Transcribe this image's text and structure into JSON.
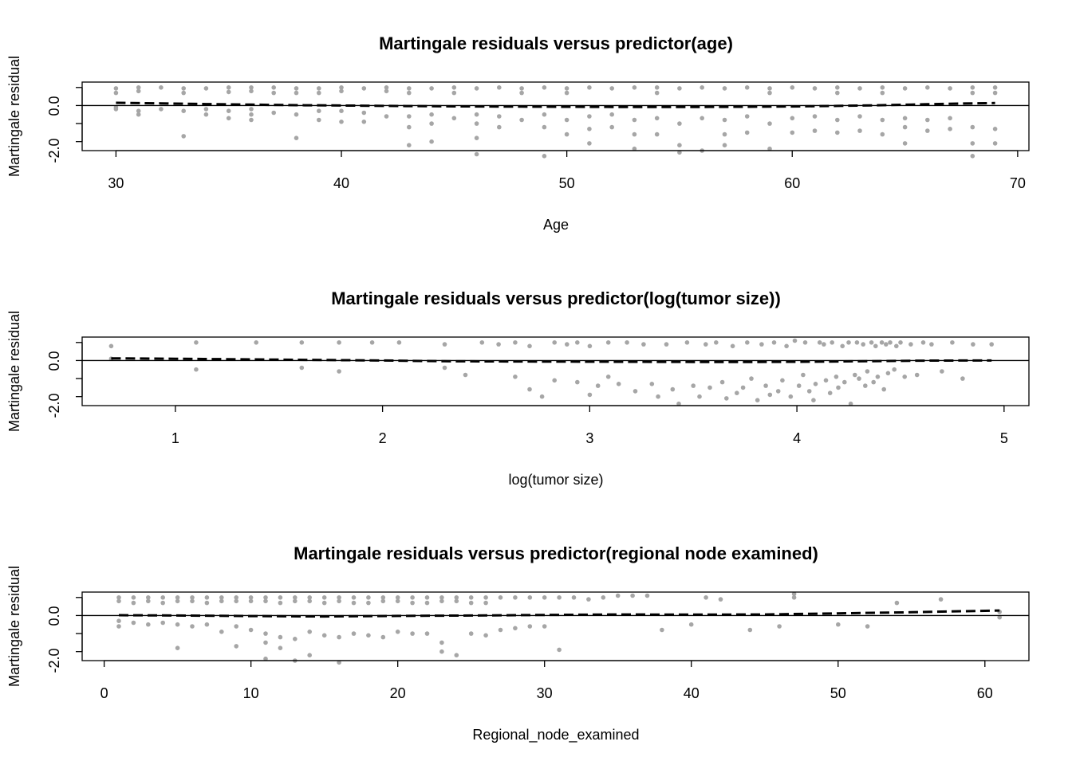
{
  "chart_data": [
    {
      "type": "scatter",
      "title": "Martingale residuals versus predictor(age)",
      "xlabel": "Age",
      "ylabel": "Martingale residual",
      "xlim": [
        28.5,
        70.5
      ],
      "ylim": [
        -2.5,
        1.3
      ],
      "xticks": [
        30,
        40,
        50,
        60,
        70
      ],
      "yticks": [
        1.0,
        0.0,
        -1.0,
        -2.0
      ],
      "ytick_labels": [
        "0.0",
        "-2.0"
      ],
      "grid": false,
      "reference_line": 0,
      "point_color": "#a6a6a6",
      "smooth_color": "#000000",
      "series": [
        {
          "x": [
            30,
            30,
            30,
            30,
            31,
            31,
            31,
            31,
            32,
            32,
            33,
            33,
            33,
            33,
            34,
            34,
            34,
            35,
            35,
            35,
            35,
            36,
            36,
            36,
            36,
            36,
            37,
            37,
            37,
            38,
            38,
            38,
            38,
            39,
            39,
            39,
            39,
            40,
            40,
            40,
            40,
            41,
            41,
            41,
            42,
            42,
            42,
            43,
            43,
            43,
            43,
            43,
            44,
            44,
            44,
            44,
            45,
            45,
            45,
            46,
            46,
            46,
            46,
            46,
            47,
            47,
            47,
            48,
            48,
            48,
            49,
            49,
            49,
            49,
            50,
            50,
            50,
            50,
            51,
            51,
            51,
            51,
            52,
            52,
            52,
            53,
            53,
            53,
            53,
            54,
            54,
            54,
            54,
            55,
            55,
            55,
            55,
            56,
            56,
            56,
            57,
            57,
            57,
            57,
            58,
            58,
            58,
            59,
            59,
            59,
            59,
            60,
            60,
            60,
            61,
            61,
            61,
            62,
            62,
            62,
            62,
            63,
            63,
            63,
            64,
            64,
            64,
            64,
            65,
            65,
            65,
            65,
            66,
            66,
            66,
            67,
            67,
            67,
            68,
            68,
            68,
            68,
            68,
            69,
            69,
            69,
            69
          ],
          "y": [
            0.95,
            0.7,
            -0.1,
            -0.2,
            1.0,
            0.8,
            -0.3,
            -0.5,
            1.0,
            -0.2,
            0.95,
            0.7,
            -0.3,
            -1.7,
            0.95,
            -0.2,
            -0.5,
            1.0,
            0.75,
            -0.3,
            -0.7,
            1.0,
            0.8,
            -0.2,
            -0.5,
            -0.8,
            1.0,
            0.7,
            -0.4,
            0.95,
            0.7,
            -0.5,
            -1.8,
            0.95,
            0.7,
            -0.3,
            -0.8,
            1.0,
            0.8,
            -0.3,
            -0.9,
            0.95,
            -0.4,
            -0.9,
            1.0,
            0.8,
            -0.6,
            0.95,
            0.7,
            -0.6,
            -1.2,
            -2.2,
            0.95,
            -0.5,
            -1.0,
            -2.0,
            1.0,
            0.7,
            -0.7,
            0.95,
            -0.5,
            -1.0,
            -1.8,
            -2.7,
            1.0,
            -0.6,
            -1.2,
            0.95,
            0.7,
            -0.8,
            1.0,
            -0.5,
            -1.2,
            -2.8,
            0.95,
            0.7,
            -0.8,
            -1.6,
            1.0,
            -0.6,
            -1.3,
            -2.1,
            0.95,
            -0.5,
            -1.2,
            1.0,
            -0.8,
            -1.6,
            -2.4,
            1.0,
            0.7,
            -0.7,
            -1.6,
            0.95,
            -1.0,
            -2.2,
            -2.6,
            1.0,
            -0.7,
            -2.5,
            0.95,
            -0.8,
            -1.6,
            -2.2,
            1.0,
            -0.6,
            -1.5,
            0.95,
            0.7,
            -1.0,
            -2.4,
            1.0,
            -0.7,
            -1.5,
            0.95,
            -0.6,
            -1.4,
            1.0,
            0.7,
            -0.8,
            -1.5,
            0.95,
            -0.6,
            -1.4,
            1.0,
            0.7,
            -0.8,
            -1.6,
            0.95,
            -0.7,
            -1.2,
            -2.1,
            1.0,
            -0.8,
            -1.4,
            0.95,
            -0.7,
            -1.3,
            1.0,
            0.7,
            -1.2,
            -2.1,
            -2.8,
            1.0,
            0.7,
            -1.3,
            -2.1
          ]
        },
        {
          "name": "",
          "kind": "smooth",
          "x": [
            30,
            32,
            34,
            36,
            38,
            40,
            42,
            44,
            46,
            48,
            50,
            52,
            54,
            56,
            58,
            60,
            62,
            64,
            66,
            68,
            69
          ],
          "y": [
            0.15,
            0.12,
            0.08,
            0.05,
            0.02,
            0.0,
            -0.02,
            -0.04,
            -0.05,
            -0.06,
            -0.07,
            -0.08,
            -0.08,
            -0.08,
            -0.07,
            -0.05,
            -0.02,
            0.02,
            0.07,
            0.12,
            0.14
          ]
        }
      ]
    },
    {
      "type": "scatter",
      "title": "Martingale residuals versus predictor(log(tumor size))",
      "xlabel": "log(tumor size)",
      "ylabel": "Martingale residual",
      "xlim": [
        0.55,
        5.12
      ],
      "ylim": [
        -2.5,
        1.3
      ],
      "xticks": [
        1,
        2,
        3,
        4,
        5
      ],
      "yticks": [
        1.0,
        0.0,
        -1.0,
        -2.0
      ],
      "ytick_labels": [
        "0.0",
        "-2.0"
      ],
      "grid": false,
      "reference_line": 0,
      "point_color": "#a6a6a6",
      "smooth_color": "#000000",
      "series": [
        {
          "x": [
            0.69,
            0.69,
            1.1,
            1.1,
            1.39,
            1.61,
            1.61,
            1.79,
            1.79,
            1.95,
            2.08,
            2.3,
            2.3,
            2.4,
            2.48,
            2.56,
            2.64,
            2.64,
            2.71,
            2.71,
            2.77,
            2.83,
            2.83,
            2.89,
            2.94,
            2.94,
            3.0,
            3.0,
            3.04,
            3.09,
            3.09,
            3.14,
            3.18,
            3.22,
            3.26,
            3.3,
            3.33,
            3.37,
            3.4,
            3.43,
            3.47,
            3.5,
            3.53,
            3.56,
            3.58,
            3.61,
            3.64,
            3.66,
            3.69,
            3.71,
            3.74,
            3.76,
            3.78,
            3.81,
            3.83,
            3.85,
            3.87,
            3.89,
            3.91,
            3.93,
            3.95,
            3.97,
            3.99,
            4.01,
            4.03,
            4.04,
            4.06,
            4.08,
            4.09,
            4.11,
            4.13,
            4.14,
            4.16,
            4.17,
            4.19,
            4.2,
            4.22,
            4.23,
            4.25,
            4.26,
            4.28,
            4.29,
            4.3,
            4.32,
            4.33,
            4.34,
            4.36,
            4.37,
            4.38,
            4.39,
            4.41,
            4.42,
            4.43,
            4.44,
            4.45,
            4.47,
            4.48,
            4.5,
            4.52,
            4.55,
            4.58,
            4.61,
            4.65,
            4.7,
            4.75,
            4.8,
            4.85,
            4.94
          ],
          "y": [
            0.8,
            0.1,
            1.0,
            -0.5,
            1.0,
            1.0,
            -0.4,
            1.0,
            -0.6,
            1.0,
            1.0,
            0.9,
            -0.4,
            -0.8,
            1.0,
            0.9,
            1.0,
            -0.9,
            -1.6,
            0.8,
            -2.0,
            1.0,
            -1.1,
            0.9,
            -1.2,
            1.0,
            -1.9,
            0.8,
            -1.4,
            1.0,
            -0.9,
            -1.3,
            1.0,
            -1.7,
            0.9,
            -1.3,
            -2.0,
            0.9,
            -1.6,
            -2.4,
            1.0,
            -1.4,
            -2.0,
            0.9,
            -1.5,
            1.0,
            -1.2,
            -2.1,
            0.8,
            -1.8,
            -1.5,
            1.0,
            -1.0,
            -2.2,
            0.9,
            -1.4,
            -1.9,
            1.0,
            -1.7,
            -1.1,
            0.8,
            -2.0,
            1.1,
            -1.4,
            -0.8,
            1.0,
            -1.7,
            -2.2,
            -1.3,
            1.0,
            0.9,
            -1.1,
            -1.8,
            1.0,
            -0.9,
            -1.5,
            0.8,
            -1.2,
            1.0,
            -2.4,
            -0.8,
            1.0,
            -1.0,
            0.9,
            -1.4,
            -0.6,
            1.0,
            -1.2,
            0.8,
            -0.9,
            1.0,
            -1.6,
            0.9,
            -0.7,
            1.0,
            -0.5,
            0.8,
            1.0,
            -0.9,
            0.9,
            -0.8,
            1.0,
            0.9,
            -0.6,
            1.0,
            -1.0,
            0.9,
            0.9
          ]
        },
        {
          "name": "",
          "kind": "smooth",
          "x": [
            0.69,
            1.0,
            1.5,
            2.0,
            2.3,
            2.6,
            2.9,
            3.2,
            3.5,
            3.8,
            4.0,
            4.2,
            4.4,
            4.6,
            4.8,
            4.94
          ],
          "y": [
            0.12,
            0.1,
            0.05,
            0.0,
            -0.04,
            -0.05,
            -0.06,
            -0.07,
            -0.08,
            -0.08,
            -0.07,
            -0.05,
            -0.03,
            -0.01,
            0.0,
            0.0
          ]
        }
      ]
    },
    {
      "type": "scatter",
      "title": "Martingale residuals versus predictor(regional node examined)",
      "xlabel": "Regional_node_examined",
      "ylabel": "Martingale residual",
      "xlim": [
        -1.5,
        63
      ],
      "ylim": [
        -2.5,
        1.3
      ],
      "xticks": [
        0,
        10,
        20,
        30,
        40,
        50,
        60
      ],
      "yticks": [
        1.0,
        0.0,
        -1.0,
        -2.0
      ],
      "ytick_labels": [
        "0.0",
        "-2.0"
      ],
      "grid": false,
      "reference_line": 0,
      "point_color": "#a6a6a6",
      "smooth_color": "#000000",
      "series": [
        {
          "x": [
            1,
            1,
            1,
            1,
            2,
            2,
            2,
            3,
            3,
            3,
            4,
            4,
            4,
            5,
            5,
            5,
            5,
            6,
            6,
            6,
            7,
            7,
            7,
            8,
            8,
            8,
            9,
            9,
            9,
            9,
            10,
            10,
            10,
            11,
            11,
            11,
            11,
            11,
            12,
            12,
            12,
            12,
            13,
            13,
            13,
            13,
            14,
            14,
            14,
            14,
            15,
            15,
            15,
            16,
            16,
            16,
            16,
            17,
            17,
            17,
            18,
            18,
            18,
            19,
            19,
            19,
            20,
            20,
            20,
            21,
            21,
            21,
            22,
            22,
            22,
            23,
            23,
            23,
            23,
            24,
            24,
            24,
            25,
            25,
            25,
            26,
            26,
            26,
            27,
            27,
            28,
            28,
            29,
            29,
            30,
            30,
            31,
            31,
            32,
            33,
            34,
            35,
            36,
            37,
            38,
            40,
            41,
            42,
            44,
            46,
            47,
            47,
            50,
            52,
            54,
            57,
            61,
            61
          ],
          "y": [
            1.0,
            0.8,
            -0.3,
            -0.6,
            1.0,
            0.7,
            -0.4,
            1.0,
            0.8,
            -0.5,
            1.0,
            0.7,
            -0.4,
            1.0,
            0.8,
            -0.5,
            -1.8,
            1.0,
            0.8,
            -0.6,
            1.0,
            0.7,
            -0.5,
            1.0,
            0.8,
            -0.9,
            1.0,
            0.8,
            -0.6,
            -1.7,
            1.0,
            0.8,
            -0.8,
            1.0,
            0.8,
            -1.0,
            -1.5,
            -2.4,
            1.0,
            0.7,
            -1.2,
            -1.8,
            1.0,
            0.8,
            -1.3,
            -2.5,
            1.0,
            0.8,
            -0.9,
            -2.2,
            1.0,
            0.7,
            -1.1,
            1.0,
            0.8,
            -1.2,
            -2.6,
            1.0,
            0.7,
            -1.0,
            1.0,
            0.7,
            -1.1,
            1.0,
            0.8,
            -1.2,
            1.0,
            0.8,
            -0.9,
            1.0,
            0.7,
            -1.0,
            1.0,
            0.7,
            -1.0,
            1.0,
            0.8,
            -1.5,
            -2.0,
            1.0,
            0.8,
            -2.2,
            1.0,
            0.7,
            -1.0,
            1.0,
            0.7,
            -1.1,
            1.0,
            -0.8,
            1.0,
            -0.7,
            1.0,
            -0.6,
            1.0,
            -0.6,
            1.0,
            -1.9,
            1.0,
            0.9,
            1.0,
            1.1,
            1.1,
            1.1,
            -0.8,
            -0.5,
            1.0,
            0.9,
            -0.8,
            -0.6,
            1.2,
            1.0,
            -0.5,
            -0.6,
            0.7,
            0.9,
            0.2,
            -0.1
          ]
        },
        {
          "name": "",
          "kind": "smooth",
          "x": [
            1,
            5,
            10,
            15,
            20,
            25,
            30,
            35,
            40,
            45,
            50,
            55,
            61
          ],
          "y": [
            0.02,
            0.0,
            -0.03,
            -0.05,
            -0.02,
            0.0,
            0.03,
            0.06,
            0.05,
            0.06,
            0.12,
            0.18,
            0.28
          ]
        }
      ]
    }
  ]
}
